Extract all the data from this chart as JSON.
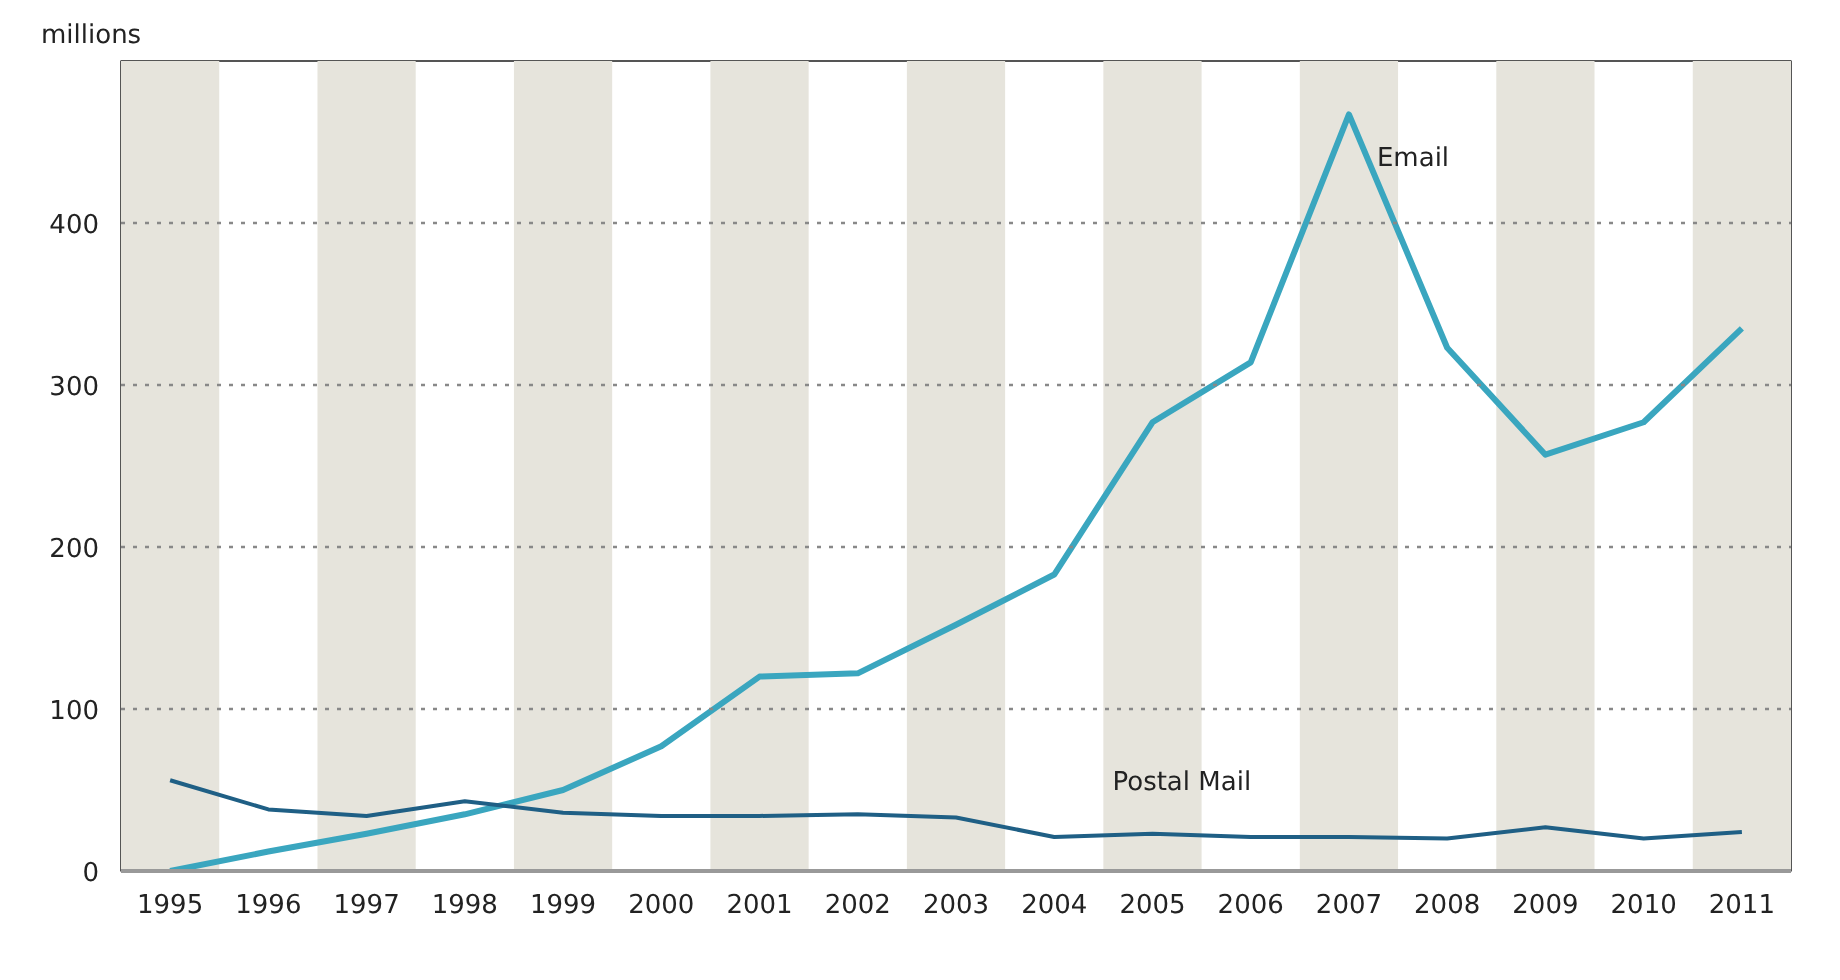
{
  "chart_data": {
    "type": "line",
    "ylabel": "millions",
    "x": [
      1995,
      1996,
      1997,
      1998,
      1999,
      2000,
      2001,
      2002,
      2003,
      2004,
      2005,
      2006,
      2007,
      2008,
      2009,
      2010,
      2011
    ],
    "xlim": [
      1994.5,
      2011.5
    ],
    "xticks": [
      1995,
      1996,
      1997,
      1998,
      1999,
      2000,
      2001,
      2002,
      2003,
      2004,
      2005,
      2006,
      2007,
      2008,
      2009,
      2010,
      2011
    ],
    "ylim": [
      0,
      500
    ],
    "yticks": [
      0,
      100,
      200,
      300,
      400,
      {
        "value": 500,
        "label": null
      }
    ],
    "grid": "y",
    "line_style": "solid",
    "bands": [
      {
        "axis": "x",
        "from": 1994.5,
        "to": 1995.5,
        "color": "#e6e4dc"
      },
      {
        "axis": "x",
        "from": 1996.5,
        "to": 1997.5,
        "color": "#e6e4dc"
      },
      {
        "axis": "x",
        "from": 1998.5,
        "to": 1999.5,
        "color": "#e6e4dc"
      },
      {
        "axis": "x",
        "from": 2000.5,
        "to": 2001.5,
        "color": "#e6e4dc"
      },
      {
        "axis": "x",
        "from": 2002.5,
        "to": 2003.5,
        "color": "#e6e4dc"
      },
      {
        "axis": "x",
        "from": 2004.5,
        "to": 2005.5,
        "color": "#e6e4dc"
      },
      {
        "axis": "x",
        "from": 2006.5,
        "to": 2007.5,
        "color": "#e6e4dc"
      },
      {
        "axis": "x",
        "from": 2008.5,
        "to": 2009.5,
        "color": "#e6e4dc"
      },
      {
        "axis": "x",
        "from": 2010.5,
        "to": 2011.5,
        "color": "#e6e4dc"
      }
    ],
    "series": [
      {
        "name": "Email",
        "color": "#3aa6bf",
        "values": [
          0,
          12,
          23,
          35,
          50,
          77,
          120,
          122,
          152,
          183,
          277,
          314,
          467,
          323,
          257,
          277,
          335
        ]
      },
      {
        "name": "Postal Mail",
        "color": "#1f5f85",
        "values": [
          56,
          38,
          34,
          43,
          36,
          34,
          34,
          35,
          33,
          21,
          23,
          21,
          21,
          20,
          27,
          20,
          24
        ]
      }
    ]
  }
}
